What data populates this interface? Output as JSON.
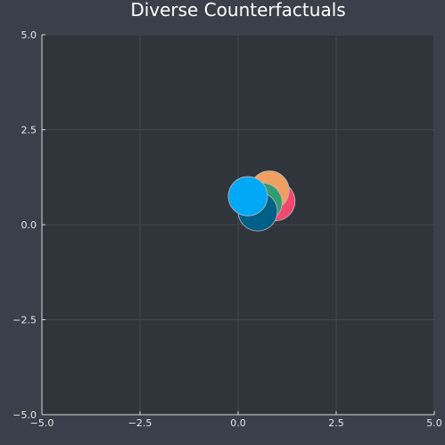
{
  "chart_data": {
    "type": "scatter",
    "title": "Diverse Counterfactuals",
    "xlabel": "",
    "ylabel": "",
    "xlim": [
      -5,
      5
    ],
    "ylim": [
      -5,
      5
    ],
    "x_ticks": [
      -5,
      -2.5,
      0,
      2.5,
      5
    ],
    "y_ticks": [
      -5,
      -2.5,
      0,
      2.5,
      5
    ],
    "x_tick_labels": [
      "−5.0",
      "−2.5",
      "0.0",
      "2.5",
      "5.0"
    ],
    "y_tick_labels": [
      "−5.0",
      "−2.5",
      "0.0",
      "2.5",
      "5.0"
    ],
    "grid": true,
    "legend": "none",
    "colors": {
      "figure_background": "#3a3f4a",
      "plot_background": "#30343b",
      "grid": "#43484f",
      "axis": "#d9d9d9",
      "marker_edge": "#b8b8b8"
    },
    "points": [
      {
        "x": 0.95,
        "y": 0.62,
        "color": "#f2476e"
      },
      {
        "x": 0.8,
        "y": 0.9,
        "color": "#eea060"
      },
      {
        "x": 0.62,
        "y": 0.58,
        "color": "#2f9c72"
      },
      {
        "x": 0.5,
        "y": 0.35,
        "color": "#005f87"
      },
      {
        "x": 0.25,
        "y": 0.75,
        "color": "#00a8f5"
      }
    ]
  }
}
